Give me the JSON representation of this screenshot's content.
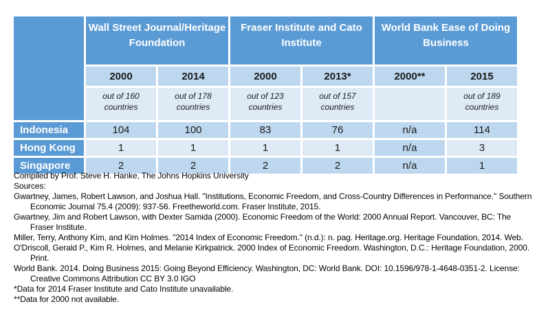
{
  "table": {
    "groups": [
      "Wall Street Journal/Heritage Foundation",
      "Fraser Institute and Cato Institute",
      "World Bank Ease of Doing Business"
    ],
    "columns": [
      {
        "year": "2000",
        "note": "out of 160 countries"
      },
      {
        "year": "2014",
        "note": "out of 178 countries"
      },
      {
        "year": "2000",
        "note": "out of 123 countries"
      },
      {
        "year": "2013*",
        "note": "out of 157 countries"
      },
      {
        "year": "2000**",
        "note": ""
      },
      {
        "year": "2015",
        "note": "out of 189 countries"
      }
    ],
    "rows": [
      {
        "label": "Indonesia",
        "values": [
          "104",
          "100",
          "83",
          "76",
          "n/a",
          "114"
        ]
      },
      {
        "label": "Hong Kong",
        "values": [
          "1",
          "1",
          "1",
          "1",
          "n/a",
          "3"
        ]
      },
      {
        "label": "Singapore",
        "values": [
          "2",
          "2",
          "2",
          "2",
          "n/a",
          "1"
        ]
      }
    ]
  },
  "colors": {
    "header_blue": "#5B9BD5",
    "band_medium": "#BDD7EE",
    "band_light": "#DEEAF6"
  },
  "footer": {
    "lines": [
      "Compiled by Prof. Steve H. Hanke, The Johns Hopkins University",
      "Sources:",
      "Gwartney, James, Robert Lawson, and Joshua Hall. \"Institutions, Economic Freedom, and Cross-Country Differences in Performance.\" Southern",
      "Economic Journal 75.4 (2009): 937-56. Freetheworld.com. Fraser Institute, 2015.",
      "Gwartney, Jim and Robert Lawson, with Dexter Samida (2000). Economic Freedom of the World: 2000 Annual Report. Vancouver, BC: The",
      "Fraser Institute.",
      "Miller, Terry, Anthony Kim, and Kim Holmes. \"2014 Index of Economic Freedom.\" (n.d.): n. pag. Heritage.org. Heritage Foundation, 2014. Web.",
      "O'Driscoll, Gerald P., Kim R. Holmes, and Melanie Kirkpatrick. 2000 Index of Economic Freedom. Washington, D.C.: Heritage Foundation, 2000.",
      "Print.",
      "World Bank. 2014. Doing Business 2015: Going Beyond Efficiency. Washington, DC: World Bank. DOI: 10.1596/978-1-4648-0351-2. License:",
      "Creative Commons Attribution CC BY 3.0 IGO",
      "*Data for 2014 Fraser Institute and Cato Institute unavailable.",
      "**Data for 2000 not available."
    ]
  }
}
